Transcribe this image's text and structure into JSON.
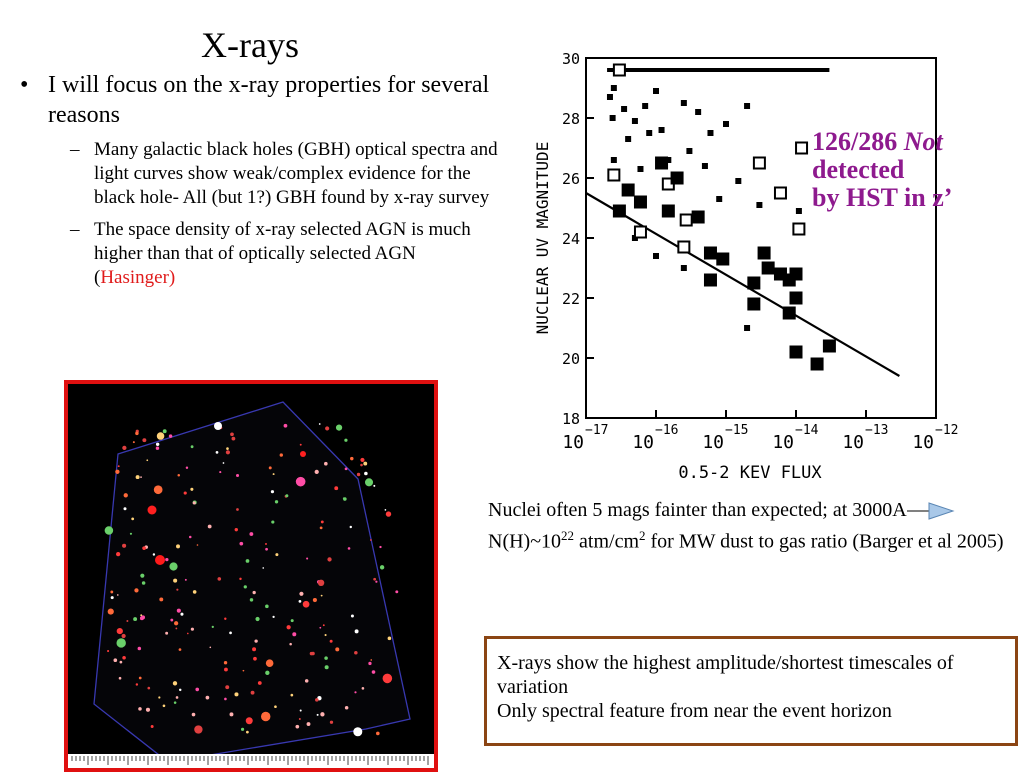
{
  "slide": {
    "title": "X-rays",
    "bullet_main": "I will focus on the x-ray properties for several reasons",
    "sub_bullets": [
      "Many galactic black holes (GBH) optical spectra and light curves show weak/complex evidence for the  black hole- All (but 1?) GBH found by x-ray survey",
      "The space density of x-ray selected AGN is much higher than that of optically selected AGN ("
    ],
    "sub_bullet_2_ref": "Hasinger)",
    "annotation": {
      "line1": "126/286 ",
      "line1_italic": "Not",
      "line2": "detected",
      "line3": "by HST in z’"
    },
    "nuclei": {
      "part1": "Nuclei  often 5 mags fainter than expected; at 3000A",
      "part2": " N(H)~10",
      "exp1": "22",
      "part3": " atm/cm",
      "exp2": "2",
      "part4": " for MW dust to gas ratio (Barger et al 2005)"
    },
    "box": {
      "line1": "X-rays show the highest amplitude/shortest timescales of variation",
      "line2": "Only spectral feature from near the event horizon"
    },
    "colors": {
      "annotation": "#8e1a8e",
      "reference": "#e01b1b",
      "image_border": "#e01010",
      "box_border": "#8b4513"
    }
  },
  "chart_data": {
    "type": "scatter",
    "xlabel": "0.5-2 KEV FLUX",
    "ylabel": "NUCLEAR UV MAGNITUDE",
    "x_scale": "log",
    "xlim": [
      1e-17,
      1e-12
    ],
    "ylim": [
      18,
      30
    ],
    "x_tick_labels": [
      {
        "base": "10",
        "exp": "−17"
      },
      {
        "base": "10",
        "exp": "−16"
      },
      {
        "base": "10",
        "exp": "−15"
      },
      {
        "base": "10",
        "exp": "−14"
      },
      {
        "base": "10",
        "exp": "−13"
      },
      {
        "base": "10",
        "exp": "−12"
      }
    ],
    "y_ticks": [
      18,
      20,
      22,
      24,
      26,
      28,
      30
    ],
    "y_tick_labels": [
      "18",
      "20",
      "22",
      "24",
      "26",
      "28",
      "30"
    ],
    "reference_line": {
      "from": [
        1e-17,
        25.5
      ],
      "to": [
        3e-13,
        19.4
      ]
    },
    "limit_row": {
      "y": 29.6,
      "from": 2e-17,
      "to": 3e-14
    },
    "points": [
      {
        "x": 3e-17,
        "y": 29.6,
        "kind": "open",
        "size": 1
      },
      {
        "x": 2.5e-17,
        "y": 29.0,
        "kind": "filled",
        "size": 1
      },
      {
        "x": 2.2e-17,
        "y": 28.7,
        "kind": "filled",
        "size": 1
      },
      {
        "x": 3.5e-17,
        "y": 28.3,
        "kind": "filled",
        "size": 1
      },
      {
        "x": 2.4e-17,
        "y": 28.0,
        "kind": "filled",
        "size": 1
      },
      {
        "x": 5e-17,
        "y": 27.9,
        "kind": "filled",
        "size": 1
      },
      {
        "x": 7e-17,
        "y": 28.4,
        "kind": "filled",
        "size": 1
      },
      {
        "x": 1e-16,
        "y": 28.9,
        "kind": "filled",
        "size": 1
      },
      {
        "x": 4e-17,
        "y": 27.3,
        "kind": "filled",
        "size": 1
      },
      {
        "x": 8e-17,
        "y": 27.5,
        "kind": "filled",
        "size": 1
      },
      {
        "x": 1.2e-16,
        "y": 27.6,
        "kind": "filled",
        "size": 1
      },
      {
        "x": 2.5e-16,
        "y": 28.5,
        "kind": "filled",
        "size": 1
      },
      {
        "x": 4e-16,
        "y": 28.2,
        "kind": "filled",
        "size": 1
      },
      {
        "x": 6e-16,
        "y": 27.5,
        "kind": "filled",
        "size": 1
      },
      {
        "x": 1e-15,
        "y": 27.8,
        "kind": "filled",
        "size": 1
      },
      {
        "x": 2e-15,
        "y": 28.4,
        "kind": "filled",
        "size": 1
      },
      {
        "x": 2.5e-17,
        "y": 26.6,
        "kind": "filled",
        "size": 1
      },
      {
        "x": 6e-17,
        "y": 26.3,
        "kind": "filled",
        "size": 1
      },
      {
        "x": 1.5e-16,
        "y": 26.6,
        "kind": "filled",
        "size": 1
      },
      {
        "x": 3e-16,
        "y": 26.9,
        "kind": "filled",
        "size": 1
      },
      {
        "x": 5e-16,
        "y": 26.4,
        "kind": "filled",
        "size": 1
      },
      {
        "x": 8e-16,
        "y": 25.3,
        "kind": "filled",
        "size": 1
      },
      {
        "x": 1.5e-15,
        "y": 25.9,
        "kind": "filled",
        "size": 1
      },
      {
        "x": 3e-15,
        "y": 25.1,
        "kind": "filled",
        "size": 1
      },
      {
        "x": 1.1e-14,
        "y": 24.9,
        "kind": "filled",
        "size": 1
      },
      {
        "x": 5e-17,
        "y": 24.0,
        "kind": "filled",
        "size": 1
      },
      {
        "x": 1e-16,
        "y": 23.4,
        "kind": "filled",
        "size": 1
      },
      {
        "x": 2.5e-16,
        "y": 23.0,
        "kind": "filled",
        "size": 1
      },
      {
        "x": 2e-15,
        "y": 21.0,
        "kind": "filled",
        "size": 1
      },
      {
        "x": 2.5e-17,
        "y": 26.1,
        "kind": "open",
        "size": 1
      },
      {
        "x": 1.5e-16,
        "y": 25.8,
        "kind": "open",
        "size": 1
      },
      {
        "x": 2.7e-16,
        "y": 24.6,
        "kind": "open",
        "size": 1
      },
      {
        "x": 6e-17,
        "y": 24.2,
        "kind": "open",
        "size": 1
      },
      {
        "x": 2.5e-16,
        "y": 23.7,
        "kind": "open",
        "size": 1
      },
      {
        "x": 6e-15,
        "y": 25.5,
        "kind": "open",
        "size": 1
      },
      {
        "x": 1.2e-14,
        "y": 27.0,
        "kind": "open",
        "size": 1
      },
      {
        "x": 1.1e-14,
        "y": 24.3,
        "kind": "open",
        "size": 1
      },
      {
        "x": 3e-15,
        "y": 26.5,
        "kind": "open",
        "size": 1
      },
      {
        "x": 1.2e-16,
        "y": 26.5,
        "kind": "filled",
        "size": 2
      },
      {
        "x": 2e-16,
        "y": 26.0,
        "kind": "filled",
        "size": 2
      },
      {
        "x": 4e-17,
        "y": 25.6,
        "kind": "filled",
        "size": 2
      },
      {
        "x": 6e-17,
        "y": 25.2,
        "kind": "filled",
        "size": 2
      },
      {
        "x": 3e-17,
        "y": 24.9,
        "kind": "filled",
        "size": 2
      },
      {
        "x": 1.5e-16,
        "y": 24.9,
        "kind": "filled",
        "size": 2
      },
      {
        "x": 4e-16,
        "y": 24.7,
        "kind": "filled",
        "size": 2
      },
      {
        "x": 6e-16,
        "y": 23.5,
        "kind": "filled",
        "size": 2
      },
      {
        "x": 9e-16,
        "y": 23.3,
        "kind": "filled",
        "size": 2
      },
      {
        "x": 6e-16,
        "y": 22.6,
        "kind": "filled",
        "size": 2
      },
      {
        "x": 2.5e-15,
        "y": 22.5,
        "kind": "filled",
        "size": 2
      },
      {
        "x": 4e-15,
        "y": 23.0,
        "kind": "filled",
        "size": 2
      },
      {
        "x": 6e-15,
        "y": 22.8,
        "kind": "filled",
        "size": 2
      },
      {
        "x": 8e-15,
        "y": 22.6,
        "kind": "filled",
        "size": 2
      },
      {
        "x": 1e-14,
        "y": 22.8,
        "kind": "filled",
        "size": 2
      },
      {
        "x": 1e-14,
        "y": 22.0,
        "kind": "filled",
        "size": 2
      },
      {
        "x": 2.5e-15,
        "y": 21.8,
        "kind": "filled",
        "size": 2
      },
      {
        "x": 8e-15,
        "y": 21.5,
        "kind": "filled",
        "size": 2
      },
      {
        "x": 1e-14,
        "y": 20.2,
        "kind": "filled",
        "size": 2
      },
      {
        "x": 2e-14,
        "y": 19.8,
        "kind": "filled",
        "size": 2
      },
      {
        "x": 3e-14,
        "y": 20.4,
        "kind": "filled",
        "size": 2
      },
      {
        "x": 3.5e-15,
        "y": 23.5,
        "kind": "filled",
        "size": 2
      }
    ]
  }
}
